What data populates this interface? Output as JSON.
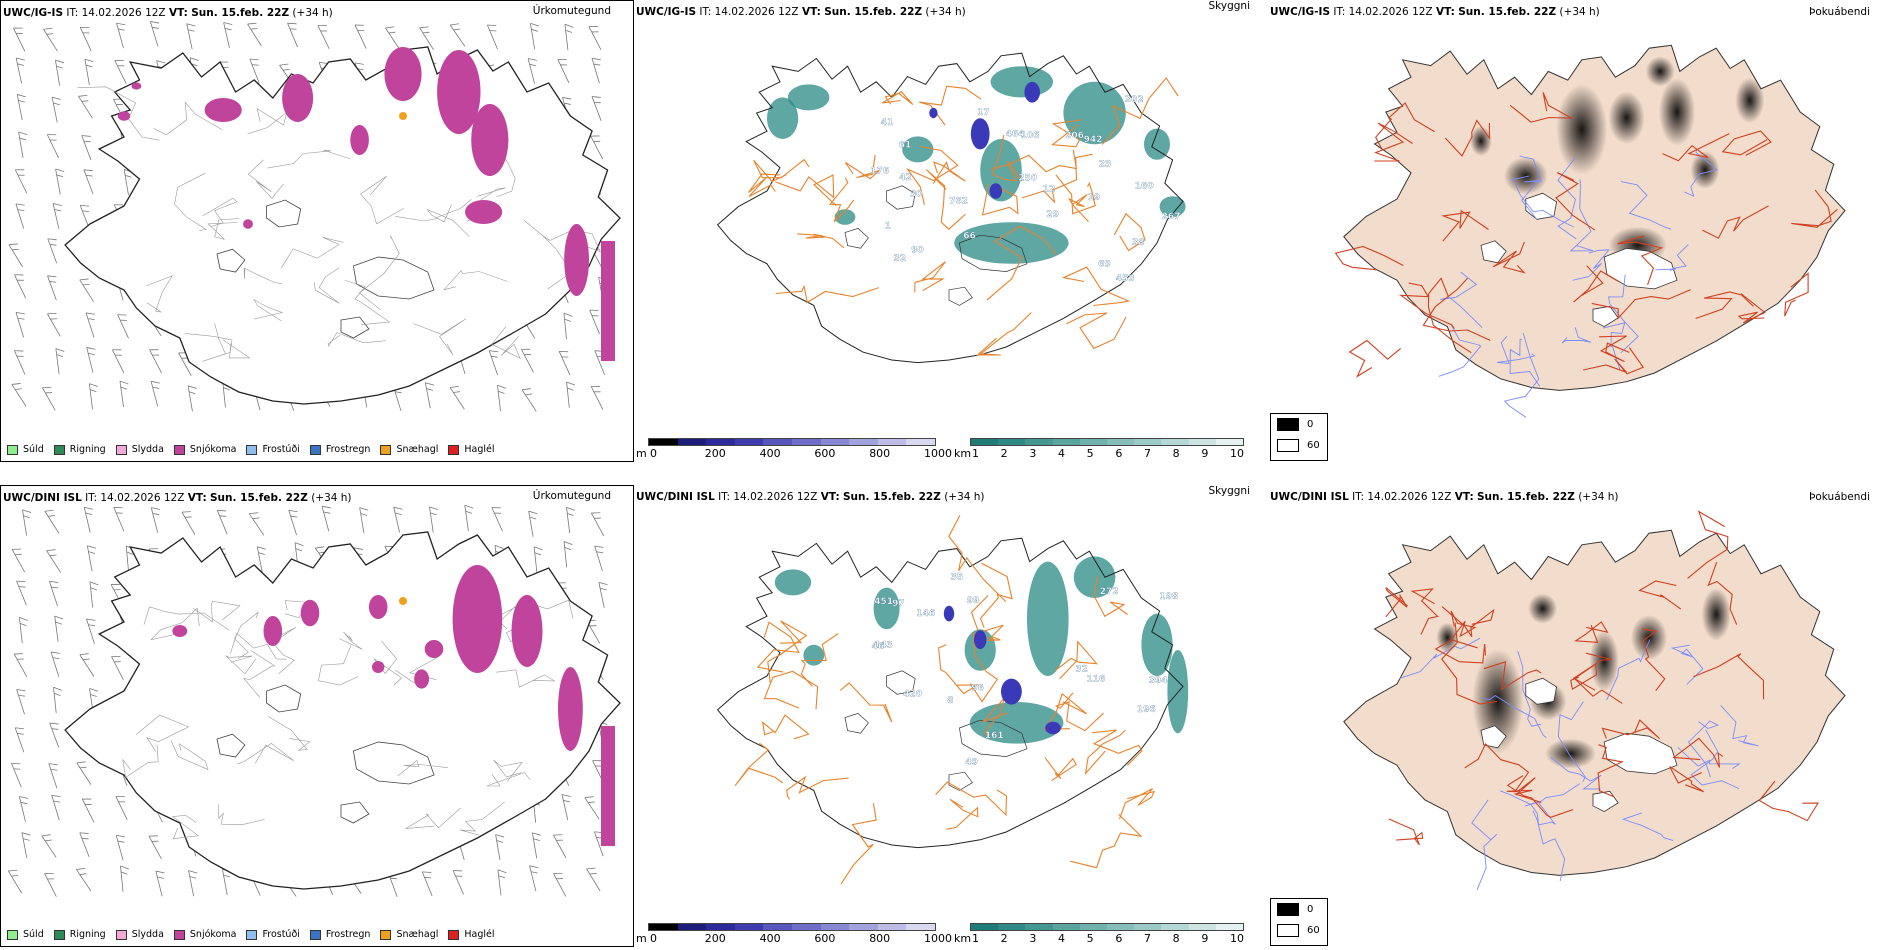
{
  "rows": [
    {
      "model": "UWC/IG-IS",
      "it_label": "IT:",
      "it_value": "14.02.2026 12Z",
      "vt_label": "VT:",
      "vt_value": "Sun. 15.feb. 22Z",
      "lead": "(+34 h)",
      "labels_cloud": [
        "453",
        "30",
        "29",
        "41",
        "38",
        "61",
        "90",
        "762",
        "942",
        "464",
        "206",
        "69",
        "66",
        "17",
        "12",
        "1",
        "19",
        "250",
        "176",
        "32",
        "302",
        "106",
        "23",
        "267",
        "160",
        "42"
      ]
    },
    {
      "model": "UWC/DINI ISL",
      "it_label": "IT:",
      "it_value": "14.02.2026 12Z",
      "vt_label": "VT:",
      "vt_value": "Sun. 15.feb. 22Z",
      "lead": "(+34 h)",
      "labels_cloud": [
        "451",
        "420",
        "49",
        "32",
        "196",
        "143",
        "46",
        "272",
        "394",
        "99",
        "97",
        "161",
        "198",
        "146",
        "116",
        "8",
        "96",
        "35"
      ]
    }
  ],
  "panel_titles": {
    "precip": "Úrkomutegund",
    "cloud": "Skyggni",
    "fog": "Þokuábendi"
  },
  "precip_legend": [
    {
      "label": "Súld",
      "color": "#90ee90"
    },
    {
      "label": "Rigning",
      "color": "#2e8b57"
    },
    {
      "label": "Slydda",
      "color": "#f4a8d8"
    },
    {
      "label": "Snjókoma",
      "color": "#c0449c"
    },
    {
      "label": "Frostúði",
      "color": "#8fbfef"
    },
    {
      "label": "Frostregn",
      "color": "#3a75c4"
    },
    {
      "label": "Snæhagl",
      "color": "#f0a020"
    },
    {
      "label": "Haglél",
      "color": "#e02020"
    }
  ],
  "ceiling_scale": {
    "unit": "m",
    "ticks": [
      "0",
      "200",
      "400",
      "600",
      "800",
      "1000"
    ],
    "colors": [
      "#000000",
      "#1c1c7a",
      "#2a2a9a",
      "#3c3cae",
      "#5656bc",
      "#6e6ec8",
      "#8888d2",
      "#a2a2dc",
      "#bcbce6",
      "#d8d8f0"
    ]
  },
  "visibility_scale": {
    "unit": "km",
    "ticks": [
      "1",
      "2",
      "3",
      "4",
      "5",
      "6",
      "7",
      "8",
      "9",
      "10"
    ],
    "colors": [
      "#1e7b76",
      "#2f8a85",
      "#459792",
      "#5aa5a0",
      "#70b2ad",
      "#86bfba",
      "#9ccbc7",
      "#b4d8d5",
      "#cce5e3",
      "#e6f2f1"
    ]
  },
  "fog_legend": [
    {
      "label": "0",
      "color": "#000000"
    },
    {
      "label": "60",
      "color": "#ffffff"
    }
  ],
  "colors": {
    "snow": "#c0449c",
    "sleet_orange": "#f0a020",
    "cloud_teal": "#2a8a84",
    "ceiling_blue": "#3a3ab8",
    "road": "#e8822a",
    "land_fog": "#f2dccb",
    "road_red": "#d04020",
    "river": "#7a8cff"
  }
}
